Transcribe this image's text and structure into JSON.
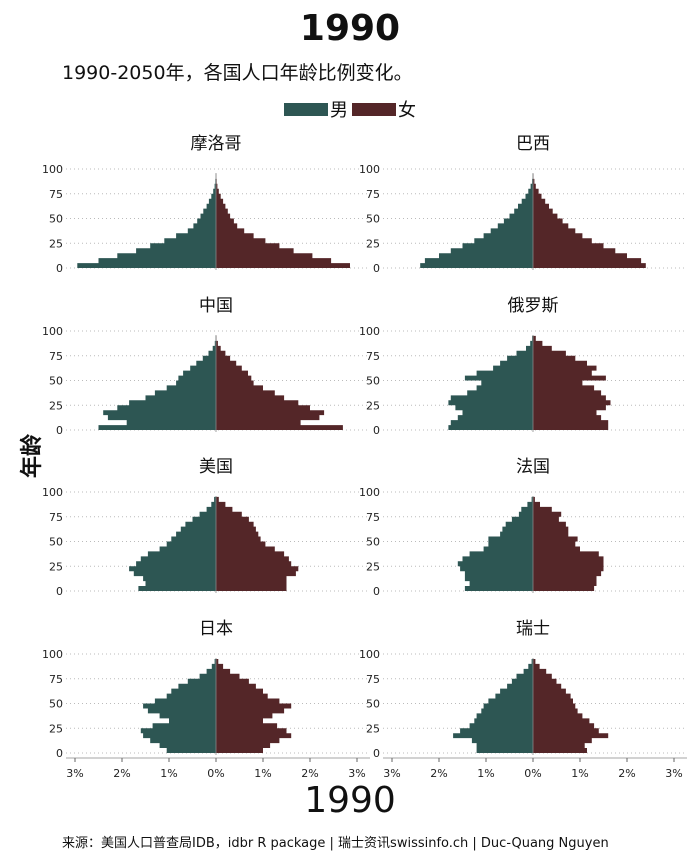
{
  "title": "1990",
  "subtitle": "1990-2050年，各国人口年龄比例变化。",
  "caption_year": "1990",
  "source": "来源：美国人口普查局IDB，idbr R package | 瑞士资讯swissinfo.ch | Duc-Quang Nguyen",
  "colors": {
    "male": "#2d5653",
    "female": "#542628"
  },
  "chart_data": {
    "type": "area",
    "orientation": "population-pyramid",
    "legend": [
      "男",
      "女"
    ],
    "legend_position": "top",
    "ylabel": "年龄",
    "ylim": [
      0,
      100
    ],
    "xlim": [
      -3,
      3
    ],
    "yticks": [
      0,
      25,
      50,
      75,
      100
    ],
    "xticks": [
      "3%",
      "2%",
      "1%",
      "0%",
      "1%",
      "2%",
      "3%"
    ],
    "grid": "horizontal-dotted",
    "ages": [
      0,
      5,
      10,
      15,
      20,
      25,
      30,
      35,
      40,
      45,
      50,
      55,
      60,
      65,
      70,
      75,
      80,
      85,
      90,
      95
    ],
    "panels": [
      {
        "name": "摩洛哥",
        "male": [
          2.95,
          2.5,
          2.1,
          1.7,
          1.4,
          1.1,
          0.85,
          0.6,
          0.48,
          0.4,
          0.33,
          0.27,
          0.2,
          0.15,
          0.1,
          0.06,
          0.03,
          0.015,
          0.005,
          0
        ],
        "female": [
          2.85,
          2.45,
          2.05,
          1.65,
          1.35,
          1.05,
          0.8,
          0.6,
          0.45,
          0.38,
          0.3,
          0.25,
          0.2,
          0.15,
          0.1,
          0.06,
          0.03,
          0.015,
          0.005,
          0
        ]
      },
      {
        "name": "巴西",
        "male": [
          2.4,
          2.3,
          2.0,
          1.75,
          1.5,
          1.25,
          1.05,
          0.9,
          0.75,
          0.62,
          0.5,
          0.4,
          0.32,
          0.24,
          0.16,
          0.1,
          0.05,
          0.02,
          0.008,
          0
        ],
        "female": [
          2.4,
          2.3,
          2.0,
          1.75,
          1.5,
          1.25,
          1.05,
          0.9,
          0.75,
          0.63,
          0.52,
          0.42,
          0.34,
          0.26,
          0.18,
          0.12,
          0.06,
          0.03,
          0.01,
          0
        ]
      },
      {
        "name": "中国",
        "male": [
          2.5,
          1.9,
          2.3,
          2.4,
          2.1,
          1.85,
          1.5,
          1.3,
          1.05,
          0.85,
          0.8,
          0.7,
          0.55,
          0.42,
          0.28,
          0.16,
          0.07,
          0.025,
          0.008,
          0
        ],
        "female": [
          2.7,
          1.8,
          2.2,
          2.3,
          2.0,
          1.75,
          1.45,
          1.25,
          1.0,
          0.8,
          0.75,
          0.68,
          0.55,
          0.43,
          0.3,
          0.2,
          0.1,
          0.04,
          0.01,
          0
        ]
      },
      {
        "name": "俄罗斯",
        "male": [
          1.8,
          1.75,
          1.6,
          1.5,
          1.65,
          1.8,
          1.75,
          1.4,
          1.2,
          1.1,
          1.45,
          1.2,
          0.85,
          0.7,
          0.55,
          0.35,
          0.15,
          0.06,
          0.02,
          0
        ],
        "female": [
          1.6,
          1.6,
          1.45,
          1.35,
          1.55,
          1.65,
          1.55,
          1.45,
          1.3,
          1.05,
          1.55,
          1.25,
          1.35,
          1.15,
          0.9,
          0.7,
          0.4,
          0.2,
          0.06,
          0
        ]
      },
      {
        "name": "美国",
        "male": [
          1.65,
          1.5,
          1.55,
          1.75,
          1.85,
          1.7,
          1.6,
          1.45,
          1.2,
          1.05,
          0.95,
          0.85,
          0.75,
          0.65,
          0.5,
          0.35,
          0.2,
          0.1,
          0.04,
          0
        ],
        "female": [
          1.5,
          1.5,
          1.5,
          1.7,
          1.75,
          1.6,
          1.55,
          1.45,
          1.25,
          1.05,
          0.95,
          0.9,
          0.85,
          0.8,
          0.7,
          0.55,
          0.35,
          0.2,
          0.06,
          0
        ]
      },
      {
        "name": "法国",
        "male": [
          1.45,
          1.35,
          1.45,
          1.45,
          1.55,
          1.6,
          1.5,
          1.35,
          1.05,
          0.95,
          0.95,
          0.7,
          0.65,
          0.58,
          0.45,
          0.3,
          0.25,
          0.12,
          0.03,
          0
        ],
        "female": [
          1.3,
          1.35,
          1.35,
          1.45,
          1.5,
          1.5,
          1.5,
          1.4,
          1.0,
          0.9,
          0.95,
          0.75,
          0.75,
          0.7,
          0.55,
          0.6,
          0.4,
          0.15,
          0.04,
          0
        ]
      },
      {
        "name": "日本",
        "male": [
          1.05,
          1.2,
          1.4,
          1.55,
          1.6,
          1.35,
          1.0,
          1.2,
          1.45,
          1.55,
          1.3,
          1.05,
          0.95,
          0.8,
          0.6,
          0.35,
          0.2,
          0.09,
          0.03,
          0
        ],
        "female": [
          1.0,
          1.15,
          1.35,
          1.6,
          1.5,
          1.3,
          1.0,
          1.2,
          1.45,
          1.6,
          1.35,
          1.1,
          1.0,
          0.85,
          0.7,
          0.5,
          0.3,
          0.15,
          0.05,
          0
        ]
      },
      {
        "name": "瑞士",
        "male": [
          1.2,
          1.2,
          1.3,
          1.7,
          1.55,
          1.35,
          1.25,
          1.2,
          1.1,
          1.05,
          0.95,
          0.8,
          0.7,
          0.55,
          0.45,
          0.35,
          0.2,
          0.1,
          0.03,
          0
        ],
        "female": [
          1.15,
          1.1,
          1.25,
          1.6,
          1.4,
          1.3,
          1.2,
          1.05,
          0.95,
          0.9,
          0.85,
          0.8,
          0.7,
          0.6,
          0.5,
          0.4,
          0.28,
          0.14,
          0.05,
          0
        ]
      }
    ]
  }
}
